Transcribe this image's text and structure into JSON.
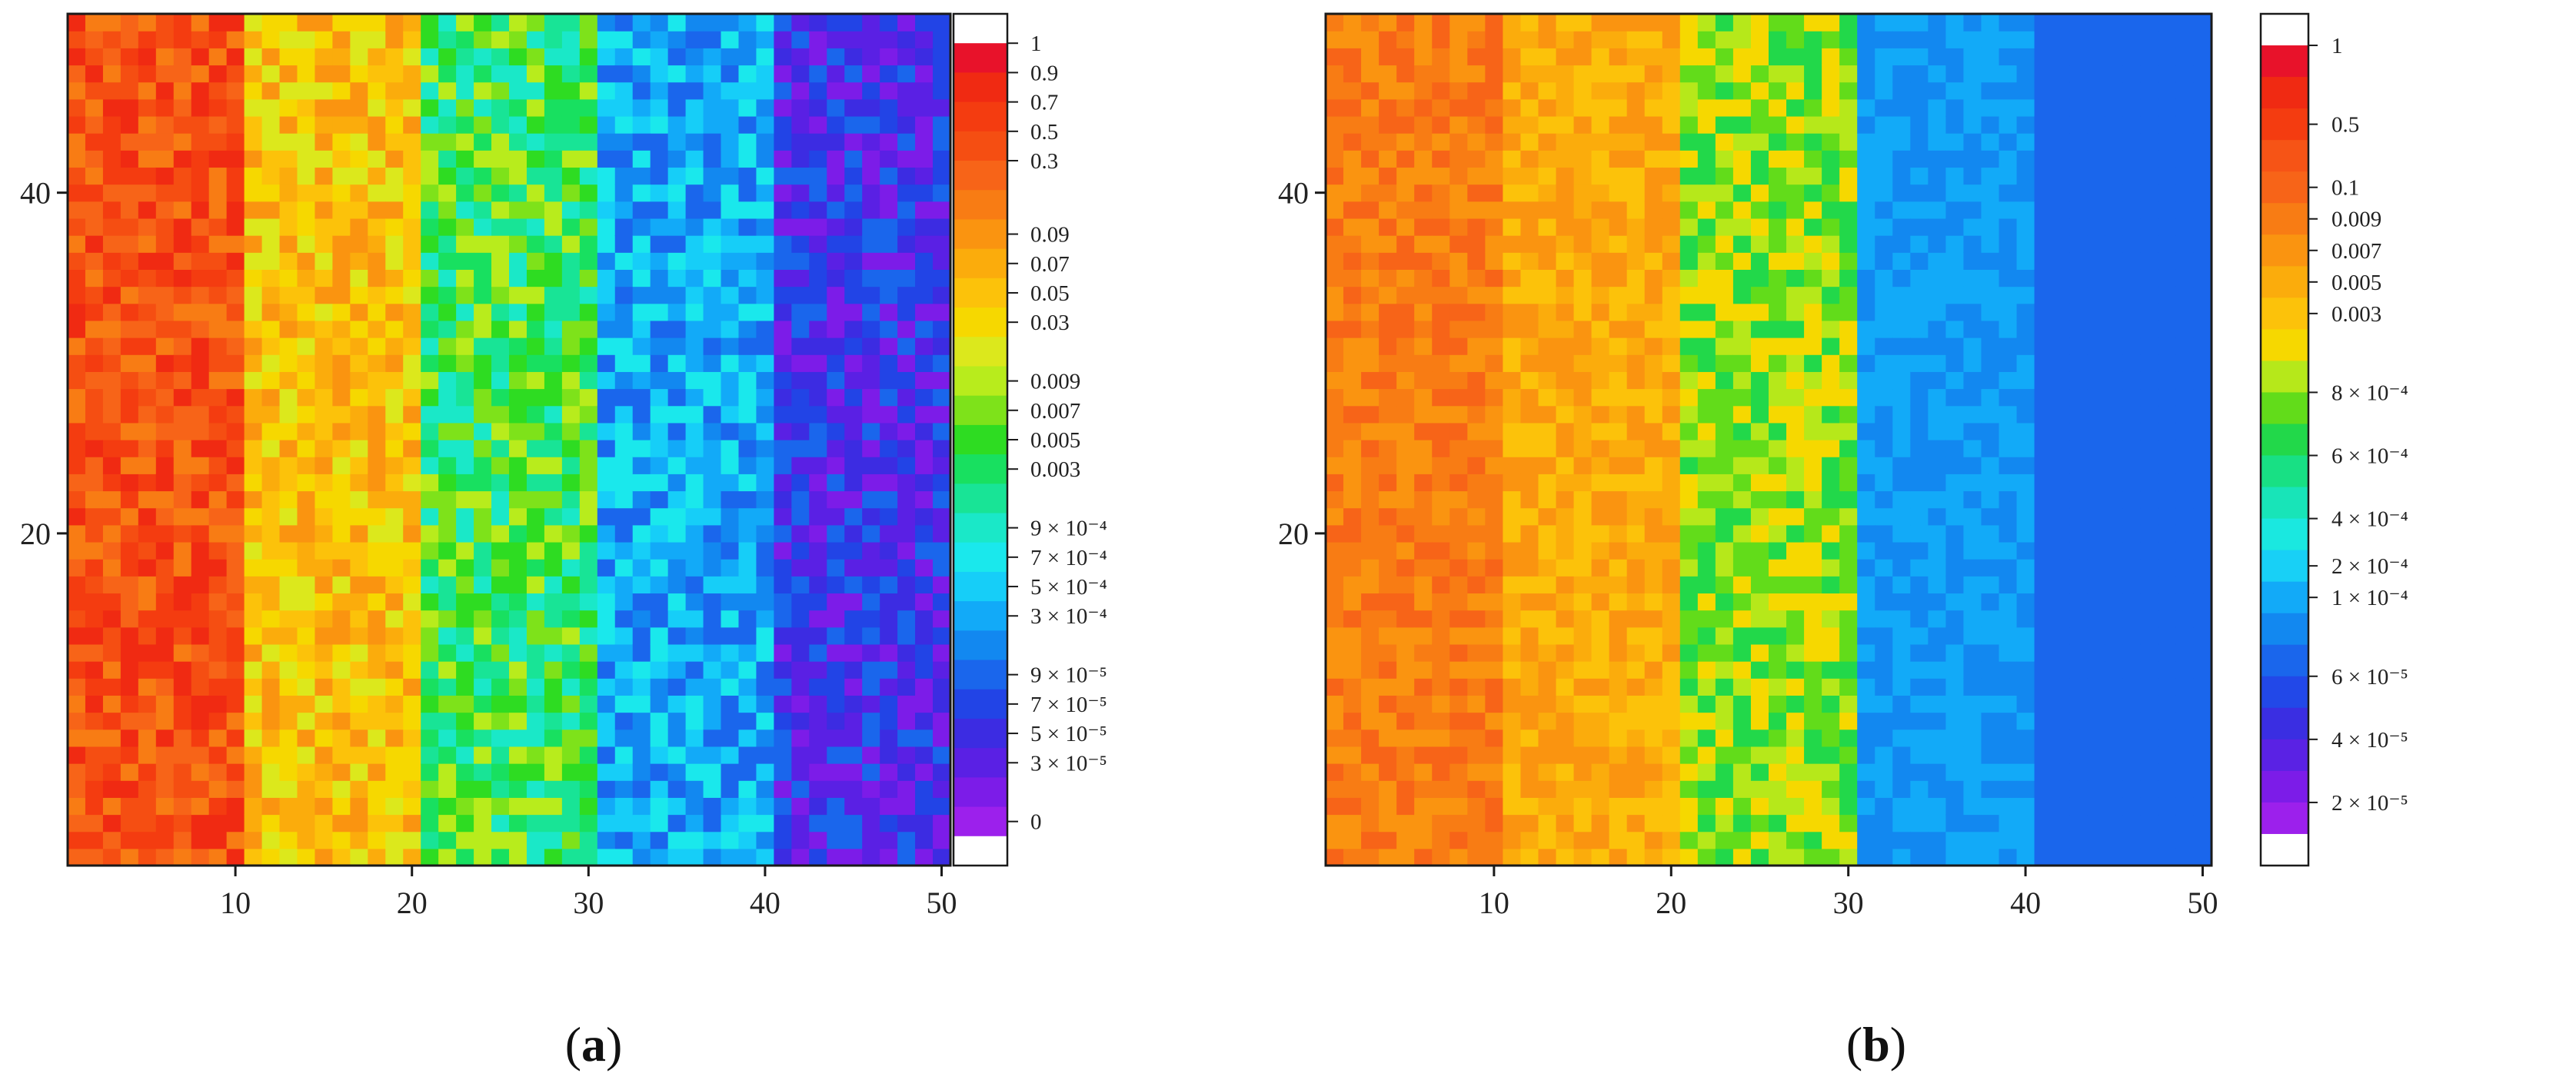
{
  "chart_data": [
    {
      "type": "heatmap",
      "panel": "a",
      "caption_letter": "a",
      "caption_open": "(",
      "caption_close": ")",
      "grid_size": [
        50,
        50
      ],
      "x_ticks": [
        10,
        20,
        30,
        40,
        50
      ],
      "y_ticks": [
        20,
        40
      ],
      "xlim": [
        0.5,
        50.5
      ],
      "ylim": [
        0.5,
        50.5
      ],
      "column_bands": [
        {
          "x_range": [
            1,
            10
          ],
          "level_indices": [
            2,
            3,
            4,
            5,
            6
          ]
        },
        {
          "x_range": [
            11,
            20
          ],
          "level_indices": [
            7,
            8,
            9,
            10,
            11
          ]
        },
        {
          "x_range": [
            21,
            30
          ],
          "level_indices": [
            12,
            13,
            14,
            15,
            16,
            17
          ]
        },
        {
          "x_range": [
            31,
            40
          ],
          "level_indices": [
            18,
            19,
            20,
            21,
            22
          ]
        },
        {
          "x_range": [
            41,
            50
          ],
          "level_indices": [
            22,
            23,
            24,
            25,
            26
          ]
        }
      ],
      "colorbar": {
        "levels": [
          "#ffffff",
          "#e8122a",
          "#f02a12",
          "#f43c10",
          "#f54e12",
          "#f76418",
          "#f87c14",
          "#fa9410",
          "#fbac0c",
          "#fcc20a",
          "#f6d800",
          "#dce81c",
          "#b8ec1c",
          "#7ee21a",
          "#2edc22",
          "#18e060",
          "#18e496",
          "#1ae8c8",
          "#1ae8ec",
          "#16cef8",
          "#12aaf8",
          "#1288f0",
          "#1a66ec",
          "#2244e6",
          "#3c2ce2",
          "#5a20e4",
          "#7c1ce8",
          "#9c20ec",
          "#ffffff"
        ],
        "labels": [
          {
            "text": "1",
            "level": 1
          },
          {
            "text": "0.9",
            "level": 2
          },
          {
            "text": "0.7",
            "level": 3
          },
          {
            "text": "0.5",
            "level": 4
          },
          {
            "text": "0.3",
            "level": 5
          },
          {
            "text": "0.09",
            "level": 7.5
          },
          {
            "text": "0.07",
            "level": 8.5
          },
          {
            "text": "0.05",
            "level": 9.5
          },
          {
            "text": "0.03",
            "level": 10.5
          },
          {
            "text": "0.009",
            "level": 12.5
          },
          {
            "text": "0.007",
            "level": 13.5
          },
          {
            "text": "0.005",
            "level": 14.5
          },
          {
            "text": "0.003",
            "level": 15.5
          },
          {
            "text": "9 × 10⁻⁴",
            "level": 17.5
          },
          {
            "text": "7 × 10⁻⁴",
            "level": 18.5
          },
          {
            "text": "5 × 10⁻⁴",
            "level": 19.5
          },
          {
            "text": "3 × 10⁻⁴",
            "level": 20.5
          },
          {
            "text": "9 × 10⁻⁵",
            "level": 22.5
          },
          {
            "text": "7 × 10⁻⁵",
            "level": 23.5
          },
          {
            "text": "5 × 10⁻⁵",
            "level": 24.5
          },
          {
            "text": "3 × 10⁻⁵",
            "level": 25.5
          },
          {
            "text": "0",
            "level": 27.5
          }
        ]
      }
    },
    {
      "type": "heatmap",
      "panel": "b",
      "caption_letter": "b",
      "caption_open": "(",
      "caption_close": ")",
      "grid_size": [
        50,
        50
      ],
      "x_ticks": [
        10,
        20,
        30,
        40,
        50
      ],
      "y_ticks": [
        20,
        40
      ],
      "xlim": [
        0.5,
        50.5
      ],
      "ylim": [
        0.5,
        50.5
      ],
      "column_bands": [
        {
          "x_range": [
            1,
            10
          ],
          "level_indices": [
            5,
            6,
            7
          ]
        },
        {
          "x_range": [
            11,
            20
          ],
          "level_indices": [
            7,
            8,
            9
          ]
        },
        {
          "x_range": [
            21,
            30
          ],
          "level_indices": [
            10,
            11,
            12,
            13
          ]
        },
        {
          "x_range": [
            31,
            40
          ],
          "level_indices": [
            18,
            19
          ]
        },
        {
          "x_range": [
            41,
            50
          ],
          "level_indices": [
            20
          ]
        }
      ],
      "colorbar": {
        "levels": [
          "#ffffff",
          "#e8122a",
          "#f02a12",
          "#f43c10",
          "#f65416",
          "#f76418",
          "#f87c14",
          "#fa9410",
          "#fbac0c",
          "#fcc20a",
          "#f6d800",
          "#b6e81a",
          "#62dc1a",
          "#22d84a",
          "#18e084",
          "#18e4b8",
          "#1ae8e0",
          "#18d0f6",
          "#12aaf8",
          "#1288f0",
          "#1a66ec",
          "#2248e8",
          "#3a2ee2",
          "#5a22e4",
          "#7c1ce8",
          "#9c20ec",
          "#ffffff"
        ],
        "labels": [
          {
            "text": "1",
            "level": 1
          },
          {
            "text": "0.5",
            "level": 3.5
          },
          {
            "text": "0.1",
            "level": 5.5
          },
          {
            "text": "0.009",
            "level": 6.5
          },
          {
            "text": "0.007",
            "level": 7.5
          },
          {
            "text": "0.005",
            "level": 8.5
          },
          {
            "text": "0.003",
            "level": 9.5
          },
          {
            "text": "8 × 10⁻⁴",
            "level": 12
          },
          {
            "text": "6 × 10⁻⁴",
            "level": 14
          },
          {
            "text": "4 × 10⁻⁴",
            "level": 16
          },
          {
            "text": "2 × 10⁻⁴",
            "level": 17.5
          },
          {
            "text": "1 × 10⁻⁴",
            "level": 18.5
          },
          {
            "text": "6 × 10⁻⁵",
            "level": 21
          },
          {
            "text": "4 × 10⁻⁵",
            "level": 23
          },
          {
            "text": "2 × 10⁻⁵",
            "level": 25
          }
        ]
      }
    }
  ]
}
